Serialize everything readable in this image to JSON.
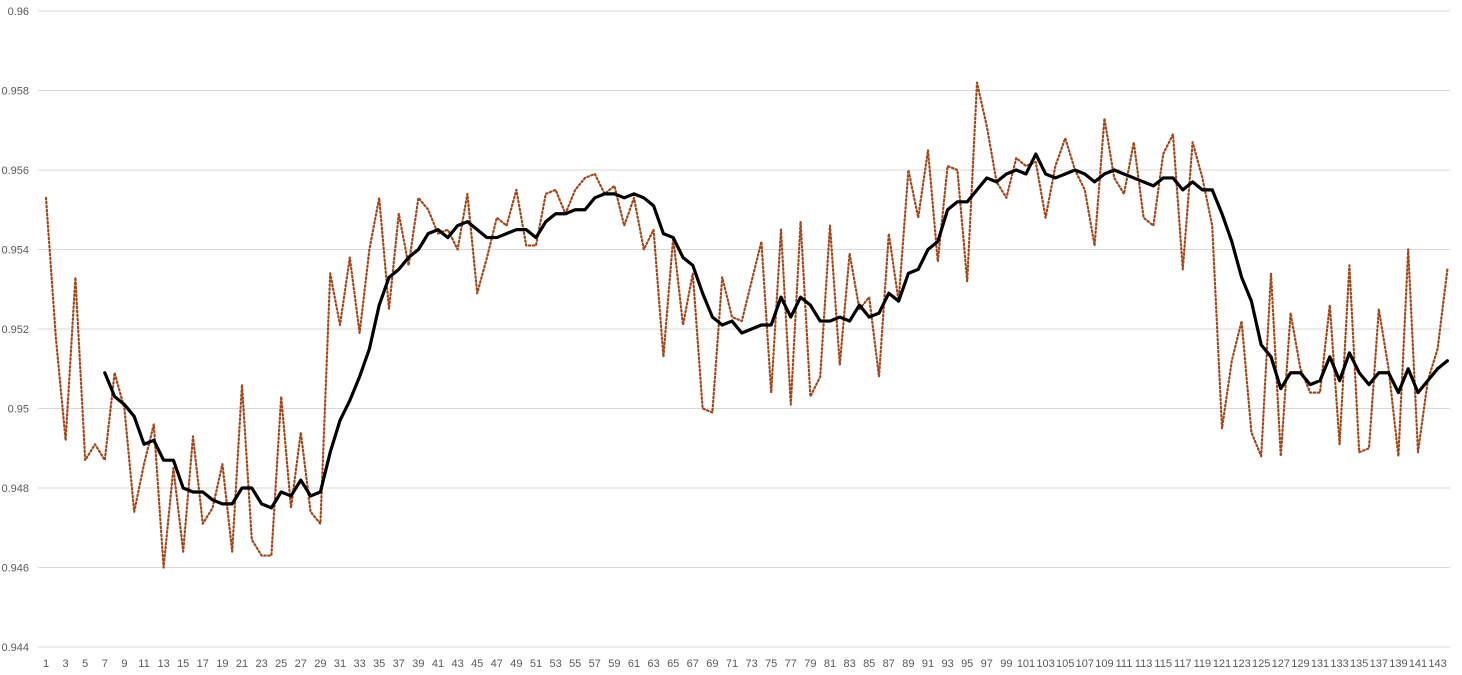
{
  "chart_data": {
    "type": "line",
    "title": "",
    "xlabel": "",
    "ylabel": "",
    "ylim": [
      0.944,
      0.96
    ],
    "y_ticks": [
      "0.944",
      "0.946",
      "0.948",
      "0.95",
      "0.952",
      "0.954",
      "0.956",
      "0.958",
      "0.96"
    ],
    "x_tick_labels": [
      "1",
      "3",
      "5",
      "7",
      "9",
      "11",
      "13",
      "15",
      "17",
      "19",
      "21",
      "23",
      "25",
      "27",
      "29",
      "31",
      "33",
      "35",
      "37",
      "39",
      "41",
      "43",
      "45",
      "47",
      "49",
      "51",
      "53",
      "55",
      "57",
      "59",
      "61",
      "63",
      "65",
      "67",
      "69",
      "71",
      "73",
      "75",
      "77",
      "79",
      "81",
      "83",
      "85",
      "87",
      "89",
      "91",
      "93",
      "95",
      "97",
      "99",
      "101",
      "103",
      "105",
      "107",
      "109",
      "111",
      "113",
      "115",
      "117",
      "119",
      "121",
      "123",
      "125",
      "127",
      "129",
      "131",
      "133",
      "135",
      "137",
      "139",
      "141",
      "143"
    ],
    "grid": true,
    "legend": "none",
    "x_count": 144,
    "series": [
      {
        "style": "dotted",
        "color": "#a0481e",
        "values": [
          0.9553,
          0.9518,
          0.9492,
          0.9533,
          0.9487,
          0.9491,
          0.9487,
          0.9509,
          0.95,
          0.9474,
          0.9486,
          0.9496,
          0.946,
          0.9485,
          0.9464,
          0.9493,
          0.9471,
          0.9475,
          0.9486,
          0.9464,
          0.9506,
          0.9467,
          0.9463,
          0.9463,
          0.9503,
          0.9475,
          0.9494,
          0.9474,
          0.9471,
          0.9534,
          0.9521,
          0.9538,
          0.9519,
          0.954,
          0.9553,
          0.9525,
          0.9549,
          0.9536,
          0.9553,
          0.955,
          0.9544,
          0.9545,
          0.954,
          0.9554,
          0.9529,
          0.9538,
          0.9548,
          0.9546,
          0.9555,
          0.9541,
          0.9541,
          0.9554,
          0.9555,
          0.9549,
          0.9555,
          0.9558,
          0.9559,
          0.9554,
          0.9556,
          0.9546,
          0.9553,
          0.954,
          0.9545,
          0.9513,
          0.9543,
          0.9521,
          0.9534,
          0.95,
          0.9499,
          0.9533,
          0.9523,
          0.9522,
          0.9532,
          0.9542,
          0.9504,
          0.9545,
          0.9501,
          0.9547,
          0.9503,
          0.9508,
          0.9546,
          0.9511,
          0.9539,
          0.9525,
          0.9528,
          0.9508,
          0.9544,
          0.9527,
          0.956,
          0.9548,
          0.9565,
          0.9537,
          0.9561,
          0.956,
          0.9532,
          0.9582,
          0.9571,
          0.9557,
          0.9553,
          0.9563,
          0.9561,
          0.9562,
          0.9548,
          0.9561,
          0.9568,
          0.956,
          0.9555,
          0.9541,
          0.9573,
          0.9558,
          0.9554,
          0.9567,
          0.9548,
          0.9546,
          0.9564,
          0.9569,
          0.9535,
          0.9567,
          0.9558,
          0.9546,
          0.9495,
          0.9512,
          0.9522,
          0.9494,
          0.9488,
          0.9534,
          0.9488,
          0.9524,
          0.951,
          0.9504,
          0.9504,
          0.9526,
          0.9491,
          0.9536,
          0.9489,
          0.949,
          0.9525,
          0.951,
          0.9488,
          0.954,
          0.9489,
          0.9507,
          0.9515,
          0.9535
        ]
      },
      {
        "style": "solid",
        "color": "#000000",
        "start_index": 7,
        "values": [
          0.9509,
          0.9503,
          0.9501,
          0.9498,
          0.9491,
          0.9492,
          0.9487,
          0.9487,
          0.948,
          0.9479,
          0.9479,
          0.9477,
          0.9476,
          0.9476,
          0.948,
          0.948,
          0.9476,
          0.9475,
          0.9479,
          0.9478,
          0.9482,
          0.9478,
          0.9479,
          0.9489,
          0.9497,
          0.9502,
          0.9508,
          0.9515,
          0.9526,
          0.9533,
          0.9535,
          0.9538,
          0.954,
          0.9544,
          0.9545,
          0.9543,
          0.9546,
          0.9547,
          0.9545,
          0.9543,
          0.9543,
          0.9544,
          0.9545,
          0.9545,
          0.9543,
          0.9547,
          0.9549,
          0.9549,
          0.955,
          0.955,
          0.9553,
          0.9554,
          0.9554,
          0.9553,
          0.9554,
          0.9553,
          0.9551,
          0.9544,
          0.9543,
          0.9538,
          0.9536,
          0.9529,
          0.9523,
          0.9521,
          0.9522,
          0.9519,
          0.952,
          0.9521,
          0.9521,
          0.9528,
          0.9523,
          0.9528,
          0.9526,
          0.9522,
          0.9522,
          0.9523,
          0.9522,
          0.9526,
          0.9523,
          0.9524,
          0.9529,
          0.9527,
          0.9534,
          0.9535,
          0.954,
          0.9542,
          0.955,
          0.9552,
          0.9552,
          0.9555,
          0.9558,
          0.9557,
          0.9559,
          0.956,
          0.9559,
          0.9564,
          0.9559,
          0.9558,
          0.9559,
          0.956,
          0.9559,
          0.9557,
          0.9559,
          0.956,
          0.9559,
          0.9558,
          0.9557,
          0.9556,
          0.9558,
          0.9558,
          0.9555,
          0.9557,
          0.9555,
          0.9555,
          0.9549,
          0.9542,
          0.9533,
          0.9527,
          0.9516,
          0.9513,
          0.9505,
          0.9509,
          0.9509,
          0.9506,
          0.9507,
          0.9513,
          0.9507,
          0.9514,
          0.9509,
          0.9506,
          0.9509,
          0.9509,
          0.9504,
          0.951,
          0.9504,
          0.9507,
          0.951,
          0.9512
        ]
      }
    ]
  }
}
